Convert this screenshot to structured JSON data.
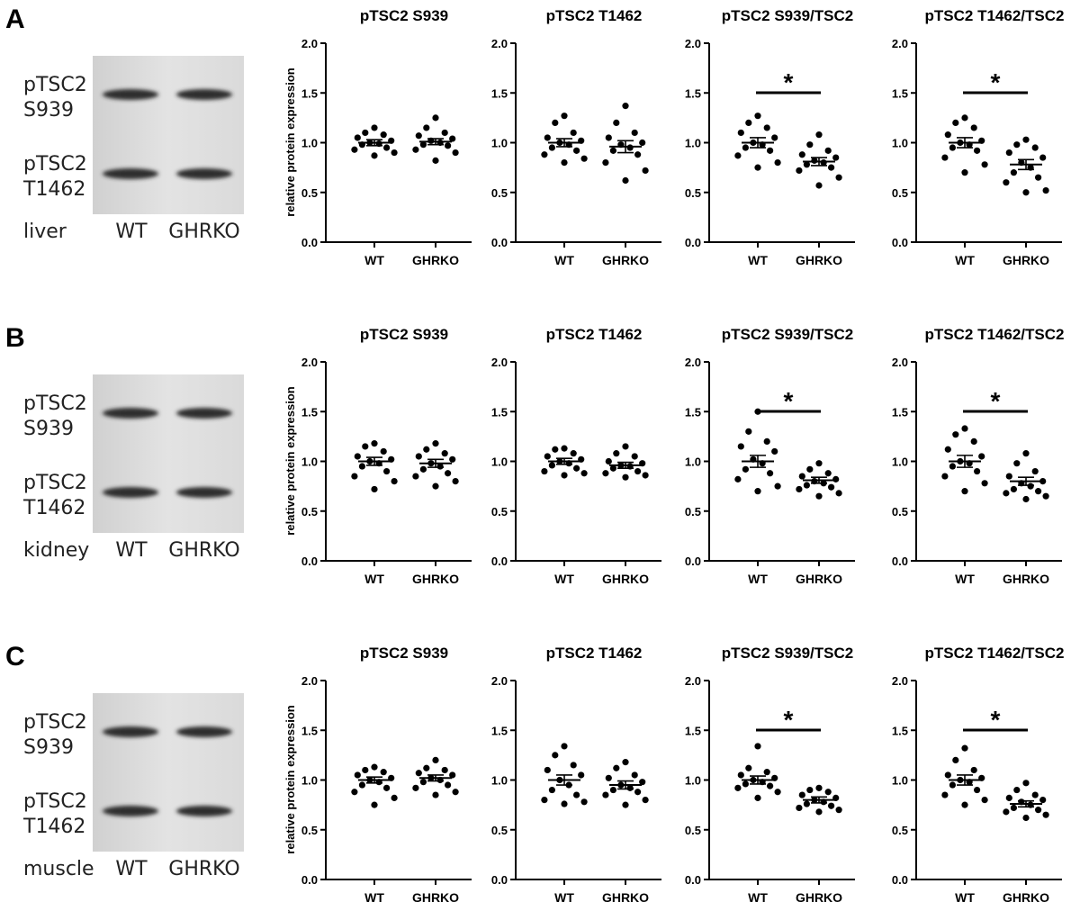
{
  "common": {
    "ylabel": "relative protein expression",
    "ylim": [
      0,
      2.0
    ],
    "yticks": [
      "0.0",
      "0.5",
      "1.0",
      "1.5",
      "2.0"
    ],
    "categories": [
      "WT",
      "GHRKO"
    ],
    "blot_labels": [
      [
        "pTSC2",
        "S939"
      ],
      [
        "pTSC2",
        "T1462"
      ]
    ],
    "lanes": [
      "WT",
      "GHRKO"
    ],
    "significance_mark": "*"
  },
  "panels": [
    {
      "letter": "A",
      "tissue": "liver"
    },
    {
      "letter": "B",
      "tissue": "kidney"
    },
    {
      "letter": "C",
      "tissue": "muscle"
    }
  ],
  "chart_data": [
    {
      "type": "scatter",
      "panel": "A",
      "title": "pTSC2 S939",
      "ylabel": "relative protein expression",
      "ylim": [
        0,
        2.0
      ],
      "categories": [
        "WT",
        "GHRKO"
      ],
      "significant": false,
      "series": [
        {
          "name": "WT",
          "mean": 1.0,
          "sem": 0.03,
          "values": [
            1.15,
            1.1,
            1.08,
            1.05,
            1.02,
            1.0,
            0.99,
            0.98,
            0.95,
            0.93,
            0.9,
            0.87
          ]
        },
        {
          "name": "GHRKO",
          "mean": 1.01,
          "sem": 0.03,
          "values": [
            1.25,
            1.15,
            1.1,
            1.07,
            1.04,
            1.02,
            1.0,
            0.98,
            0.97,
            0.93,
            0.9,
            0.82
          ]
        }
      ]
    },
    {
      "type": "scatter",
      "panel": "A",
      "title": "pTSC2 T1462",
      "ylim": [
        0,
        2.0
      ],
      "categories": [
        "WT",
        "GHRKO"
      ],
      "significant": false,
      "series": [
        {
          "name": "WT",
          "mean": 1.0,
          "sem": 0.04,
          "values": [
            1.27,
            1.2,
            1.1,
            1.05,
            1.02,
            1.0,
            0.98,
            0.95,
            0.92,
            0.88,
            0.84,
            0.8
          ]
        },
        {
          "name": "GHRKO",
          "mean": 0.96,
          "sem": 0.06,
          "values": [
            1.37,
            1.2,
            1.1,
            1.05,
            1.0,
            0.98,
            0.95,
            0.92,
            0.88,
            0.8,
            0.72,
            0.62
          ]
        }
      ]
    },
    {
      "type": "scatter",
      "panel": "A",
      "title": "pTSC2 S939/TSC2",
      "ylim": [
        0,
        2.0
      ],
      "categories": [
        "WT",
        "GHRKO"
      ],
      "significant": true,
      "series": [
        {
          "name": "WT",
          "mean": 1.0,
          "sem": 0.05,
          "values": [
            1.27,
            1.2,
            1.15,
            1.1,
            1.05,
            1.0,
            0.98,
            0.95,
            0.92,
            0.87,
            0.8,
            0.75
          ]
        },
        {
          "name": "GHRKO",
          "mean": 0.81,
          "sem": 0.04,
          "values": [
            1.08,
            0.98,
            0.92,
            0.88,
            0.85,
            0.82,
            0.8,
            0.78,
            0.75,
            0.72,
            0.65,
            0.57
          ]
        }
      ]
    },
    {
      "type": "scatter",
      "panel": "A",
      "title": "pTSC2 T1462/TSC2",
      "ylim": [
        0,
        2.0
      ],
      "categories": [
        "WT",
        "GHRKO"
      ],
      "significant": true,
      "series": [
        {
          "name": "WT",
          "mean": 1.0,
          "sem": 0.05,
          "values": [
            1.25,
            1.2,
            1.15,
            1.08,
            1.02,
            1.0,
            0.98,
            0.95,
            0.92,
            0.85,
            0.78,
            0.7
          ]
        },
        {
          "name": "GHRKO",
          "mean": 0.78,
          "sem": 0.05,
          "values": [
            1.03,
            0.98,
            0.95,
            0.9,
            0.85,
            0.8,
            0.75,
            0.7,
            0.65,
            0.6,
            0.52,
            0.5
          ]
        }
      ]
    },
    {
      "type": "scatter",
      "panel": "B",
      "title": "pTSC2 S939",
      "ylabel": "relative protein expression",
      "ylim": [
        0,
        2.0
      ],
      "categories": [
        "WT",
        "GHRKO"
      ],
      "significant": false,
      "series": [
        {
          "name": "WT",
          "mean": 1.0,
          "sem": 0.04,
          "values": [
            1.18,
            1.15,
            1.1,
            1.05,
            1.02,
            1.0,
            0.98,
            0.95,
            0.9,
            0.85,
            0.8,
            0.72
          ]
        },
        {
          "name": "GHRKO",
          "mean": 0.98,
          "sem": 0.04,
          "values": [
            1.18,
            1.12,
            1.08,
            1.05,
            1.02,
            0.98,
            0.95,
            0.92,
            0.88,
            0.85,
            0.8,
            0.75
          ]
        }
      ]
    },
    {
      "type": "scatter",
      "panel": "B",
      "title": "pTSC2 T1462",
      "ylim": [
        0,
        2.0
      ],
      "categories": [
        "WT",
        "GHRKO"
      ],
      "significant": false,
      "series": [
        {
          "name": "WT",
          "mean": 1.0,
          "sem": 0.03,
          "values": [
            1.13,
            1.12,
            1.08,
            1.05,
            1.02,
            1.0,
            0.98,
            0.96,
            0.93,
            0.9,
            0.88,
            0.86
          ]
        },
        {
          "name": "GHRKO",
          "mean": 0.96,
          "sem": 0.03,
          "values": [
            1.15,
            1.08,
            1.05,
            1.0,
            0.98,
            0.96,
            0.95,
            0.93,
            0.9,
            0.88,
            0.86,
            0.84
          ]
        }
      ]
    },
    {
      "type": "scatter",
      "panel": "B",
      "title": "pTSC2 S939/TSC2",
      "ylim": [
        0,
        2.0
      ],
      "categories": [
        "WT",
        "GHRKO"
      ],
      "significant": true,
      "series": [
        {
          "name": "WT",
          "mean": 1.0,
          "sem": 0.06,
          "values": [
            1.5,
            1.3,
            1.2,
            1.15,
            1.1,
            1.02,
            0.98,
            0.92,
            0.88,
            0.82,
            0.75,
            0.7
          ]
        },
        {
          "name": "GHRKO",
          "mean": 0.81,
          "sem": 0.03,
          "values": [
            0.98,
            0.92,
            0.88,
            0.85,
            0.82,
            0.8,
            0.78,
            0.76,
            0.74,
            0.72,
            0.68,
            0.65
          ]
        }
      ]
    },
    {
      "type": "scatter",
      "panel": "B",
      "title": "pTSC2 T1462/TSC2",
      "ylim": [
        0,
        2.0
      ],
      "categories": [
        "WT",
        "GHRKO"
      ],
      "significant": true,
      "series": [
        {
          "name": "WT",
          "mean": 1.0,
          "sem": 0.06,
          "values": [
            1.33,
            1.27,
            1.2,
            1.12,
            1.05,
            1.0,
            0.98,
            0.95,
            0.9,
            0.85,
            0.78,
            0.7
          ]
        },
        {
          "name": "GHRKO",
          "mean": 0.8,
          "sem": 0.04,
          "values": [
            1.08,
            0.98,
            0.9,
            0.85,
            0.8,
            0.78,
            0.75,
            0.72,
            0.7,
            0.68,
            0.65,
            0.62
          ]
        }
      ]
    },
    {
      "type": "scatter",
      "panel": "C",
      "title": "pTSC2 S939",
      "ylabel": "relative protein expression",
      "ylim": [
        0,
        2.0
      ],
      "categories": [
        "WT",
        "GHRKO"
      ],
      "significant": false,
      "series": [
        {
          "name": "WT",
          "mean": 1.0,
          "sem": 0.03,
          "values": [
            1.13,
            1.1,
            1.08,
            1.05,
            1.02,
            1.0,
            0.98,
            0.95,
            0.92,
            0.88,
            0.82,
            0.75
          ]
        },
        {
          "name": "GHRKO",
          "mean": 1.02,
          "sem": 0.03,
          "values": [
            1.2,
            1.12,
            1.1,
            1.07,
            1.05,
            1.02,
            1.0,
            0.98,
            0.95,
            0.92,
            0.88,
            0.85
          ]
        }
      ]
    },
    {
      "type": "scatter",
      "panel": "C",
      "title": "pTSC2 T1462",
      "ylim": [
        0,
        2.0
      ],
      "categories": [
        "WT",
        "GHRKO"
      ],
      "significant": false,
      "series": [
        {
          "name": "WT",
          "mean": 1.0,
          "sem": 0.05,
          "values": [
            1.34,
            1.25,
            1.15,
            1.1,
            1.05,
            1.0,
            0.95,
            0.9,
            0.85,
            0.8,
            0.78,
            0.76
          ]
        },
        {
          "name": "GHRKO",
          "mean": 0.95,
          "sem": 0.04,
          "values": [
            1.18,
            1.12,
            1.05,
            1.02,
            0.98,
            0.95,
            0.92,
            0.9,
            0.88,
            0.85,
            0.8,
            0.75
          ]
        }
      ]
    },
    {
      "type": "scatter",
      "panel": "C",
      "title": "pTSC2 S939/TSC2",
      "ylim": [
        0,
        2.0
      ],
      "categories": [
        "WT",
        "GHRKO"
      ],
      "significant": true,
      "series": [
        {
          "name": "WT",
          "mean": 1.0,
          "sem": 0.04,
          "values": [
            1.34,
            1.12,
            1.08,
            1.05,
            1.02,
            1.0,
            0.98,
            0.96,
            0.94,
            0.92,
            0.88,
            0.82
          ]
        },
        {
          "name": "GHRKO",
          "mean": 0.8,
          "sem": 0.03,
          "values": [
            0.92,
            0.9,
            0.88,
            0.85,
            0.82,
            0.8,
            0.78,
            0.76,
            0.74,
            0.72,
            0.7,
            0.68
          ]
        }
      ]
    },
    {
      "type": "scatter",
      "panel": "C",
      "title": "pTSC2 T1462/TSC2",
      "ylim": [
        0,
        2.0
      ],
      "categories": [
        "WT",
        "GHRKO"
      ],
      "significant": true,
      "series": [
        {
          "name": "WT",
          "mean": 1.0,
          "sem": 0.05,
          "values": [
            1.32,
            1.2,
            1.1,
            1.05,
            1.02,
            1.0,
            0.98,
            0.95,
            0.9,
            0.85,
            0.8,
            0.75
          ]
        },
        {
          "name": "GHRKO",
          "mean": 0.76,
          "sem": 0.03,
          "values": [
            0.97,
            0.9,
            0.85,
            0.82,
            0.8,
            0.78,
            0.75,
            0.72,
            0.7,
            0.68,
            0.65,
            0.62
          ]
        }
      ]
    }
  ]
}
